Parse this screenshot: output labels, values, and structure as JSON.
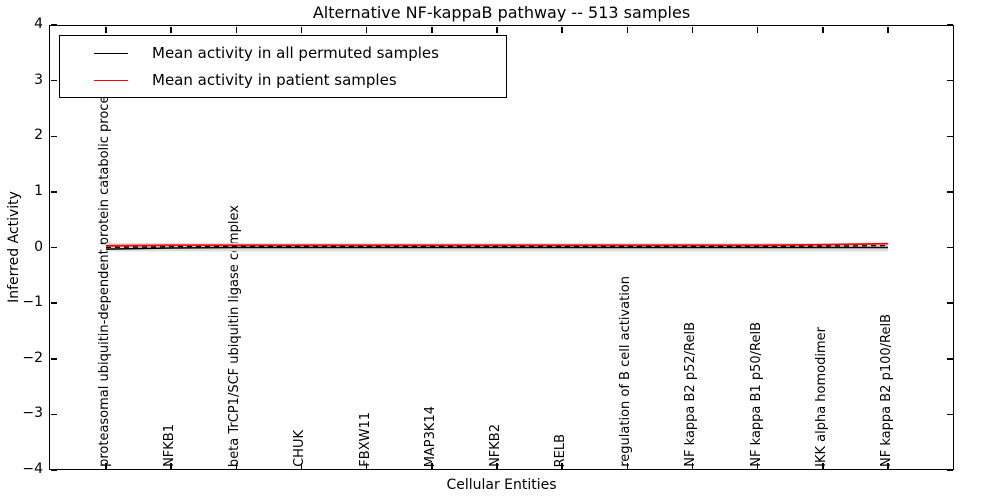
{
  "title": "Alternative NF-kappaB pathway -- 513 samples",
  "chart_data": {
    "type": "line",
    "title": "Alternative NF-kappaB pathway -- 513 samples",
    "xlabel": "Cellular Entities",
    "ylabel": "Inferred Activity",
    "ylim": [
      -4,
      4
    ],
    "yticks": [
      4,
      3,
      2,
      1,
      0,
      -1,
      -2,
      -3,
      -4
    ],
    "ytick_labels": [
      "4",
      "3",
      "2",
      "1",
      "0",
      "−1",
      "−2",
      "−3",
      "−4"
    ],
    "grid": false,
    "background": "#ffffff",
    "categories": [
      "proteasomal ubiquitin-dependent protein catabolic process",
      "NFKB1",
      "beta TrCP1/SCF ubiquitin ligase complex",
      "CHUK",
      "FBXW11",
      "MAP3K14",
      "NFKB2",
      "RELB",
      "regulation of B cell activation",
      "NF kappa B2 p52/RelB",
      "NF kappa B1 p50/RelB",
      "IKK alpha homodimer",
      "NF kappa B2 p100/RelB"
    ],
    "series": [
      {
        "name": "Mean activity in all permuted samples",
        "color": "#000000",
        "style": "solid",
        "values": [
          -0.03,
          -0.01,
          0.0,
          0.0,
          0.0,
          0.0,
          0.0,
          0.0,
          0.0,
          0.0,
          0.0,
          0.0,
          0.0
        ]
      },
      {
        "name": "Mean activity in patient samples",
        "color": "#ff0000",
        "style": "solid",
        "values": [
          0.03,
          0.04,
          0.04,
          0.04,
          0.04,
          0.04,
          0.04,
          0.04,
          0.04,
          0.04,
          0.04,
          0.05,
          0.07
        ]
      }
    ],
    "band": {
      "upper": 0.08,
      "lower": -0.07,
      "color": "#dcdcdc"
    },
    "legend": {
      "position": "upper left",
      "entries": [
        {
          "label": "Mean activity in all permuted samples",
          "color": "#000000"
        },
        {
          "label": "Mean activity in patient samples",
          "color": "#ff0000"
        }
      ]
    }
  }
}
